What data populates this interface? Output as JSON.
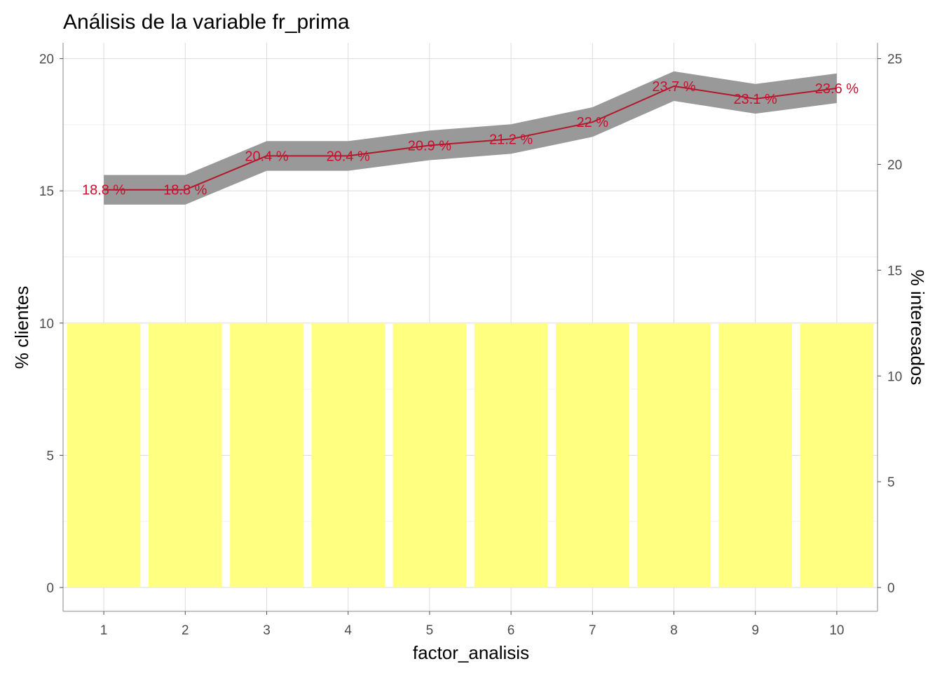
{
  "chart_data": {
    "type": "bar+line",
    "title": "Análisis de la variable fr_prima",
    "xlabel": "factor_analisis",
    "ylabel_left": "% clientes",
    "ylabel_right": "% interesados",
    "categories": [
      "1",
      "2",
      "3",
      "4",
      "5",
      "6",
      "7",
      "8",
      "9",
      "10"
    ],
    "bars": {
      "axis": "left",
      "values": [
        10,
        10,
        10,
        10,
        10,
        10,
        10,
        10,
        10,
        10
      ],
      "color": "#ffff80"
    },
    "line": {
      "axis": "right",
      "values": [
        18.8,
        18.8,
        20.4,
        20.4,
        20.9,
        21.2,
        22.0,
        23.7,
        23.1,
        23.6
      ],
      "labels": [
        "18.8 %",
        "18.8 %",
        "20.4 %",
        "20.4 %",
        "20.9 %",
        "21.2 %",
        "22 %",
        "23.7 %",
        "23.1 %",
        "23.6 %"
      ],
      "band_lower": [
        18.1,
        18.1,
        19.7,
        19.7,
        20.2,
        20.5,
        21.3,
        23.0,
        22.4,
        22.9
      ],
      "band_upper": [
        19.5,
        19.5,
        21.1,
        21.1,
        21.6,
        21.9,
        22.7,
        24.4,
        23.8,
        24.3
      ],
      "color": "#b2182b",
      "band_color": "#999999",
      "label_color": "#c8102e"
    },
    "ylim_left": [
      -0.9,
      20.6
    ],
    "ylim_right": [
      -1.125,
      25.75
    ],
    "yticks_left": [
      0,
      5,
      10,
      15,
      20
    ],
    "yticks_right": [
      0,
      5,
      10,
      15,
      20,
      25
    ],
    "grid": true,
    "legend": "none"
  }
}
